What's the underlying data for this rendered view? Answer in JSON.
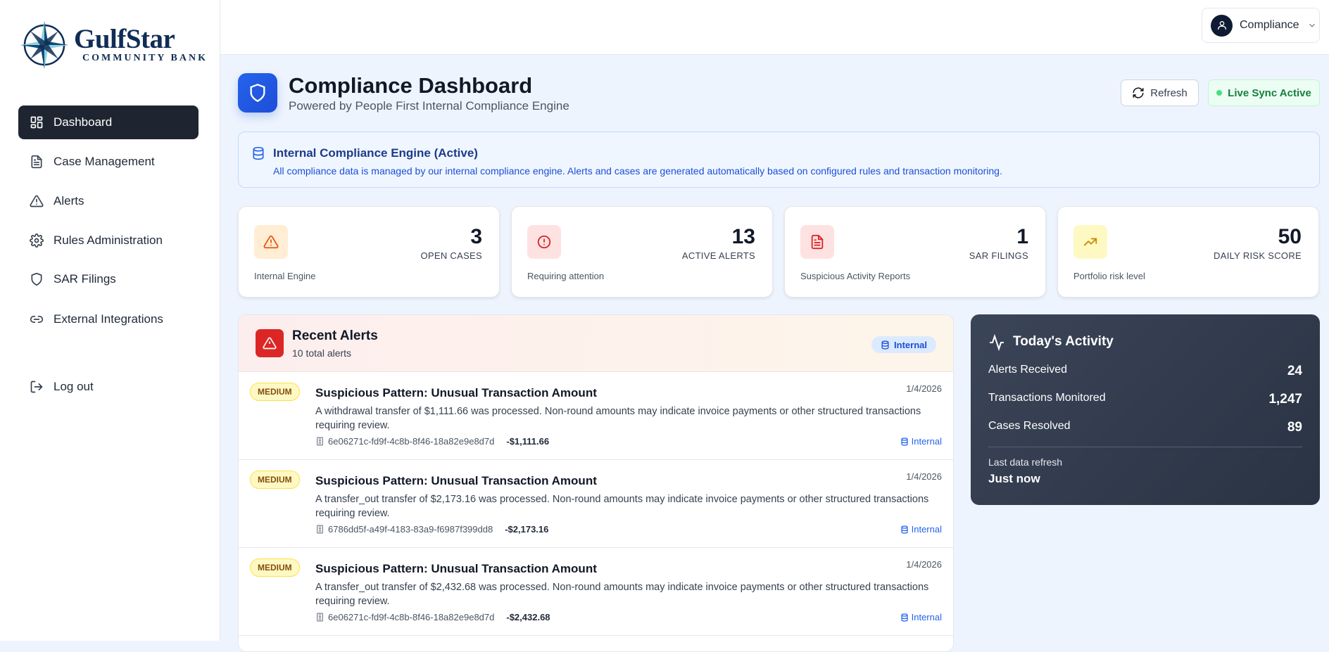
{
  "brand": {
    "name": "GulfStar",
    "tagline": "Community Bank"
  },
  "sidebar": {
    "items": [
      {
        "label": "Dashboard",
        "icon": "grid-icon",
        "active": true
      },
      {
        "label": "Case Management",
        "icon": "file-icon"
      },
      {
        "label": "Alerts",
        "icon": "warning-icon"
      },
      {
        "label": "Rules Administration",
        "icon": "gear-icon"
      },
      {
        "label": "SAR Filings",
        "icon": "shield-icon"
      },
      {
        "label": "External Integrations",
        "icon": "link-icon"
      }
    ],
    "logout": "Log out"
  },
  "topbar": {
    "user": "Compliance"
  },
  "header": {
    "title": "Compliance Dashboard",
    "subtitle": "Powered by People First Internal Compliance Engine",
    "refresh": "Refresh",
    "live": "Live Sync Active"
  },
  "banner": {
    "title": "Internal Compliance Engine (Active)",
    "text": "All compliance data is managed by our internal compliance engine. Alerts and cases are generated automatically based on configured rules and transaction monitoring."
  },
  "stats": [
    {
      "value": "3",
      "label": "OPEN CASES",
      "sub": "Internal Engine",
      "color": "#ea580c",
      "bg": "#ffedd5"
    },
    {
      "value": "13",
      "label": "ACTIVE ALERTS",
      "sub": "Requiring attention",
      "color": "#dc2626",
      "bg": "#fee2e2"
    },
    {
      "value": "1",
      "label": "SAR FILINGS",
      "sub": "Suspicious Activity Reports",
      "color": "#dc2626",
      "bg": "#fee2e2"
    },
    {
      "value": "50",
      "label": "DAILY RISK SCORE",
      "sub": "Portfolio risk level",
      "color": "#ca8a04",
      "bg": "#fef9c3"
    }
  ],
  "alerts": {
    "title": "Recent Alerts",
    "count": "10 total alerts",
    "badge": "Internal",
    "items": [
      {
        "severity": "MEDIUM",
        "title": "Suspicious Pattern: Unusual Transaction Amount",
        "date": "1/4/2026",
        "desc": "A withdrawal transfer of $1,111.66 was processed. Non-round amounts may indicate invoice payments or other structured transactions requiring review.",
        "account": "6e06271c-fd9f-4c8b-8f46-18a82e9e8d7d",
        "amount": "-$1,111.66",
        "source": "Internal"
      },
      {
        "severity": "MEDIUM",
        "title": "Suspicious Pattern: Unusual Transaction Amount",
        "date": "1/4/2026",
        "desc": "A transfer_out transfer of $2,173.16 was processed. Non-round amounts may indicate invoice payments or other structured transactions requiring review.",
        "account": "6786dd5f-a49f-4183-83a9-f6987f399dd8",
        "amount": "-$2,173.16",
        "source": "Internal"
      },
      {
        "severity": "MEDIUM",
        "title": "Suspicious Pattern: Unusual Transaction Amount",
        "date": "1/4/2026",
        "desc": "A transfer_out transfer of $2,432.68 was processed. Non-round amounts may indicate invoice payments or other structured transactions requiring review.",
        "account": "6e06271c-fd9f-4c8b-8f46-18a82e9e8d7d",
        "amount": "-$2,432.68",
        "source": "Internal"
      }
    ]
  },
  "activity": {
    "title": "Today's Activity",
    "rows": [
      {
        "label": "Alerts Received",
        "value": "24"
      },
      {
        "label": "Transactions Monitored",
        "value": "1,247"
      },
      {
        "label": "Cases Resolved",
        "value": "89"
      }
    ],
    "refresh_label": "Last data refresh",
    "refresh_value": "Just now"
  }
}
